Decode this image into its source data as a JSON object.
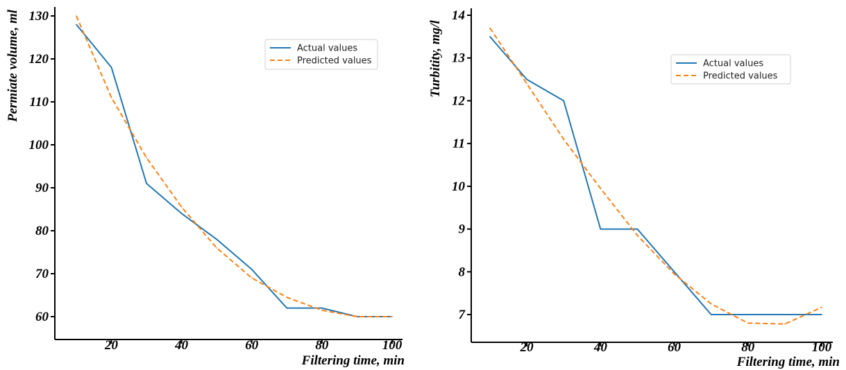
{
  "chart_data": [
    {
      "type": "line",
      "title": "",
      "xlabel": "Filtering time, min",
      "ylabel": "Permiate volume, ml",
      "xlim": [
        5,
        102
      ],
      "ylim": [
        56,
        130
      ],
      "xticks": [
        20,
        40,
        60,
        80,
        100
      ],
      "yticks": [
        60,
        70,
        80,
        90,
        100,
        110,
        120,
        130
      ],
      "grid": false,
      "legend_position": "upper-right",
      "series": [
        {
          "name": "Actual values",
          "style": "solid",
          "color": "#1f77b4",
          "x": [
            10,
            20,
            30,
            40,
            50,
            60,
            70,
            80,
            90,
            100
          ],
          "y": [
            128,
            118,
            91,
            84,
            78,
            71,
            62,
            62,
            60,
            60
          ]
        },
        {
          "name": "Predicted values",
          "style": "dashed",
          "color": "#ff7f0e",
          "x": [
            10,
            20,
            30,
            40,
            50,
            60,
            70,
            80,
            90,
            100
          ],
          "y": [
            130,
            111,
            97,
            85.5,
            76,
            69,
            64.5,
            61.5,
            60,
            60
          ]
        }
      ]
    },
    {
      "type": "line",
      "title": "",
      "xlabel": "Filtering time, min",
      "ylabel": "Turbitity, mg/l",
      "xlim": [
        5,
        102
      ],
      "ylim": [
        6.5,
        14
      ],
      "xticks": [
        20,
        40,
        60,
        80,
        100
      ],
      "yticks": [
        7,
        8,
        9,
        10,
        11,
        12,
        13,
        14
      ],
      "grid": false,
      "legend_position": "upper-right",
      "series": [
        {
          "name": "Actual values",
          "style": "solid",
          "color": "#1f77b4",
          "x": [
            10,
            20,
            30,
            40,
            50,
            60,
            70,
            80,
            90,
            100
          ],
          "y": [
            13.5,
            12.5,
            12,
            9,
            9,
            8,
            7,
            7,
            7,
            7
          ]
        },
        {
          "name": "Predicted values",
          "style": "dashed",
          "color": "#ff7f0e",
          "x": [
            10,
            20,
            30,
            40,
            50,
            60,
            70,
            80,
            90,
            100
          ],
          "y": [
            13.7,
            12.4,
            11.1,
            9.95,
            8.85,
            7.95,
            7.25,
            6.8,
            6.78,
            7.17
          ]
        }
      ]
    }
  ]
}
